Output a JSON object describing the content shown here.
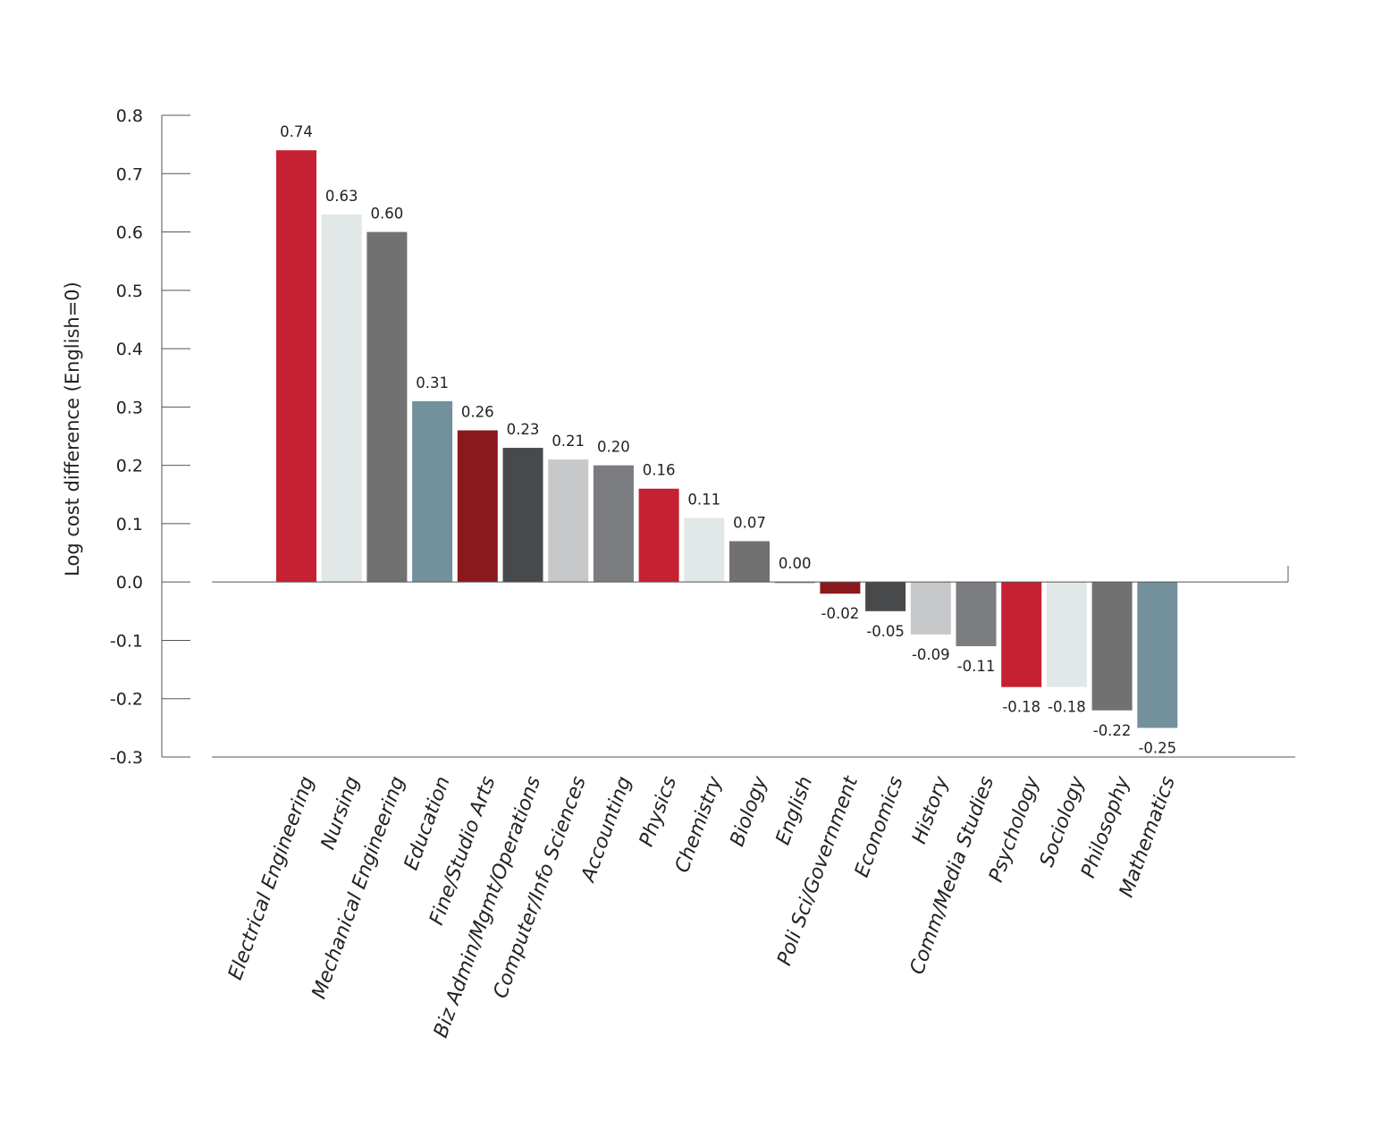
{
  "chart_data": {
    "type": "bar",
    "ylabel": "Log cost difference (English=0)",
    "ylim": [
      -0.3,
      0.8
    ],
    "yticks": [
      "0.8",
      "0.7",
      "0.6",
      "0.5",
      "0.4",
      "0.3",
      "0.2",
      "0.1",
      "0.0",
      "-0.1",
      "-0.2",
      "-0.3"
    ],
    "ytick_values": [
      0.8,
      0.7,
      0.6,
      0.5,
      0.4,
      0.3,
      0.2,
      0.1,
      0.0,
      -0.1,
      -0.2,
      -0.3
    ],
    "grid": false,
    "legend": "none",
    "categories": [
      "Electrical Engineering",
      "Nursing",
      "Mechanical Engineering",
      "Education",
      "Fine/Studio Arts",
      "Biz Admin/Mgmt/Operations",
      "Computer/Info Sciences",
      "Accounting",
      "Physics",
      "Chemistry",
      "Biology",
      "English",
      "Poli Sci/Government",
      "Economics",
      "History",
      "Comm/Media Studies",
      "Psychology",
      "Sociology",
      "Philosophy",
      "Mathematics"
    ],
    "values": [
      0.74,
      0.63,
      0.6,
      0.31,
      0.26,
      0.23,
      0.21,
      0.2,
      0.16,
      0.11,
      0.07,
      0.0,
      -0.02,
      -0.05,
      -0.09,
      -0.11,
      -0.18,
      -0.18,
      -0.22,
      -0.25
    ],
    "value_labels": [
      "0.74",
      "0.63",
      "0.60",
      "0.31",
      "0.26",
      "0.23",
      "0.21",
      "0.20",
      "0.16",
      "0.11",
      "0.07",
      "0.00",
      "-0.02",
      "-0.05",
      "-0.09",
      "-0.11",
      "-0.18",
      "-0.18",
      "-0.22",
      "-0.25"
    ],
    "colors": [
      "#c62033",
      "#e2e7e7",
      "#707170",
      "#73919c",
      "#8b181d",
      "#48494b",
      "#c7c8ca",
      "#7b7c80",
      "#c62033",
      "#e2e7e7",
      "#707170",
      "#73919c",
      "#8b181d",
      "#48494b",
      "#c7c8ca",
      "#7b7c80",
      "#c62033",
      "#e2e7e7",
      "#707170",
      "#73919c"
    ]
  }
}
